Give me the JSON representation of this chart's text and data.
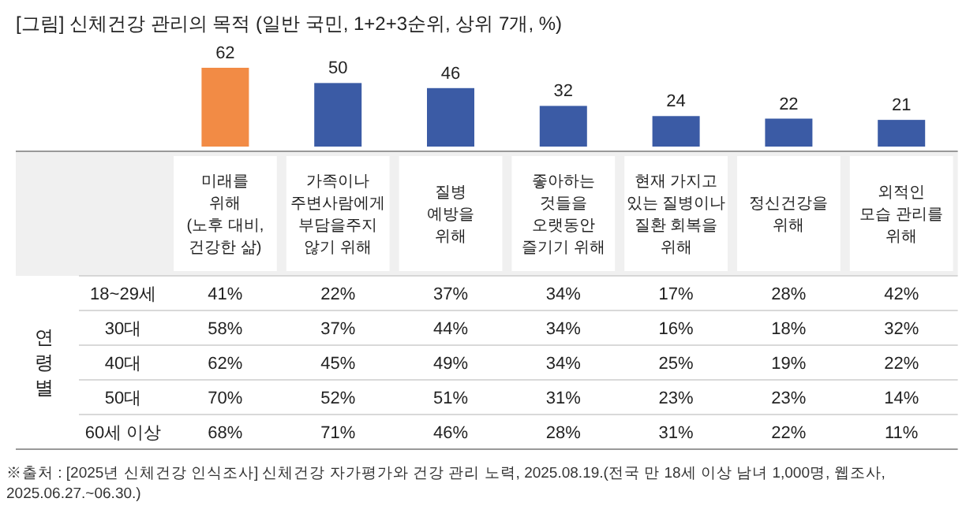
{
  "chart_data": [
    {
      "type": "bar",
      "title": "[그림] 신체건강 관리의 목적 (일반 국민, 1+2+3순위, 상위 7개, %)",
      "categories": [
        "미래를\n위해\n(노후 대비,\n건강한 삶)",
        "가족이나\n주변사람에게\n부담을주지\n않기 위해",
        "질병\n예방을\n위해",
        "좋아하는\n것들을\n오랫동안\n즐기기 위해",
        "현재 가지고\n있는 질병이나\n질환 회복을\n위해",
        "정신건강을\n위해",
        "외적인\n모습 관리를\n위해"
      ],
      "values": [
        62,
        50,
        46,
        32,
        24,
        22,
        21
      ],
      "colors": [
        "#f28b45",
        "#3b5ba5",
        "#3b5ba5",
        "#3b5ba5",
        "#3b5ba5",
        "#3b5ba5",
        "#3b5ba5"
      ],
      "data_labels": true
    },
    {
      "type": "heatmap",
      "ylabel": "연령별",
      "categories": [
        null,
        null,
        null,
        null,
        null,
        null,
        null
      ],
      "y_categories": [
        "18~29세",
        "30대",
        "40대",
        "50대",
        "60세 이상"
      ],
      "cells": [
        [
          41,
          22,
          37,
          34,
          17,
          28,
          42
        ],
        [
          58,
          37,
          44,
          34,
          16,
          18,
          32
        ],
        [
          62,
          45,
          49,
          34,
          25,
          19,
          22
        ],
        [
          70,
          52,
          51,
          31,
          23,
          23,
          14
        ],
        [
          68,
          71,
          46,
          28,
          31,
          22,
          11
        ]
      ],
      "cell_labels": [
        [
          "41%",
          "22%",
          "37%",
          "34%",
          "17%",
          "28%",
          "42%"
        ],
        [
          "58%",
          "37%",
          "44%",
          "34%",
          "16%",
          "18%",
          "32%"
        ],
        [
          "62%",
          "45%",
          "49%",
          "34%",
          "25%",
          "19%",
          "22%"
        ],
        [
          "70%",
          "52%",
          "51%",
          "31%",
          "23%",
          "23%",
          "14%"
        ],
        [
          "68%",
          "71%",
          "46%",
          "28%",
          "31%",
          "22%",
          "11%"
        ]
      ],
      "annotations": [
        "※출처 : [2025년 신체건강 인식조사] 신체건강 자가평가와 건강 관리 노력, 2025.08.19.(전국 만 18세 이상 남녀 1,000명, 웹조사, 2025.06.27.~06.30.)"
      ]
    }
  ]
}
